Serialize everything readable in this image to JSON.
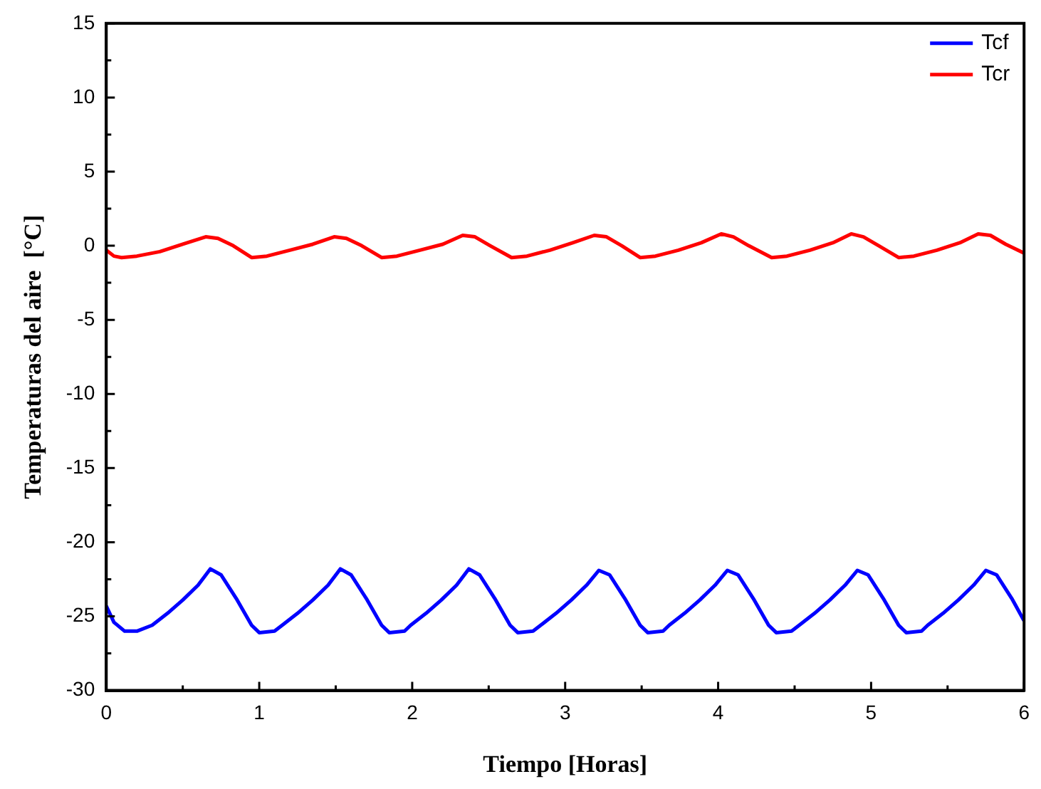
{
  "chart_data": {
    "type": "line",
    "xlabel": "Tiempo [Horas]",
    "ylabel": "Temperaturas del aire  [°C]",
    "xlim": [
      0,
      6
    ],
    "xticks": [
      0,
      1,
      2,
      3,
      4,
      5,
      6
    ],
    "ylim": [
      -30,
      15
    ],
    "yticks": [
      -30,
      -25,
      -20,
      -15,
      -10,
      -5,
      0,
      5,
      10,
      15
    ],
    "grid": false,
    "legend": "top right",
    "marker": "none",
    "line_style": "solid",
    "series": [
      {
        "name": "Tcf",
        "color": "#0000ff",
        "x": [
          0,
          0.05,
          0.12,
          0.2,
          0.3,
          0.4,
          0.5,
          0.6,
          0.68,
          0.75,
          0.85,
          0.95,
          1.0,
          1.1,
          1.15,
          1.25,
          1.35,
          1.45,
          1.53,
          1.6,
          1.7,
          1.8,
          1.85,
          1.95,
          1.99,
          2.09,
          2.19,
          2.29,
          2.37,
          2.44,
          2.54,
          2.64,
          2.69,
          2.79,
          2.84,
          2.94,
          3.04,
          3.14,
          3.22,
          3.29,
          3.39,
          3.49,
          3.54,
          3.64,
          3.68,
          3.78,
          3.88,
          3.98,
          4.06,
          4.13,
          4.23,
          4.33,
          4.38,
          4.48,
          4.53,
          4.63,
          4.73,
          4.83,
          4.91,
          4.98,
          5.08,
          5.18,
          5.23,
          5.33,
          5.37,
          5.47,
          5.57,
          5.67,
          5.75,
          5.82,
          5.92,
          6.0
        ],
        "values": [
          -24.3,
          -25.4,
          -26.0,
          -26.0,
          -25.6,
          -24.8,
          -23.9,
          -22.9,
          -21.8,
          -22.2,
          -23.8,
          -25.6,
          -26.1,
          -26.0,
          -25.6,
          -24.8,
          -23.9,
          -22.9,
          -21.8,
          -22.2,
          -23.8,
          -25.6,
          -26.1,
          -26.0,
          -25.6,
          -24.8,
          -23.9,
          -22.9,
          -21.8,
          -22.2,
          -23.8,
          -25.6,
          -26.1,
          -26.0,
          -25.6,
          -24.8,
          -23.9,
          -22.9,
          -21.9,
          -22.2,
          -23.8,
          -25.6,
          -26.1,
          -26.0,
          -25.6,
          -24.8,
          -23.9,
          -22.9,
          -21.9,
          -22.2,
          -23.8,
          -25.6,
          -26.1,
          -26.0,
          -25.6,
          -24.8,
          -23.9,
          -22.9,
          -21.9,
          -22.2,
          -23.8,
          -25.6,
          -26.1,
          -26.0,
          -25.6,
          -24.8,
          -23.9,
          -22.9,
          -21.9,
          -22.2,
          -23.8,
          -25.3
        ]
      },
      {
        "name": "Tcr",
        "color": "#ff0000",
        "x": [
          0,
          0.05,
          0.1,
          0.2,
          0.35,
          0.5,
          0.65,
          0.73,
          0.83,
          0.95,
          1.05,
          1.2,
          1.35,
          1.49,
          1.57,
          1.67,
          1.8,
          1.9,
          2.05,
          2.2,
          2.33,
          2.41,
          2.51,
          2.65,
          2.75,
          2.9,
          3.05,
          3.19,
          3.27,
          3.37,
          3.49,
          3.59,
          3.74,
          3.89,
          4.02,
          4.1,
          4.2,
          4.35,
          4.45,
          4.6,
          4.75,
          4.87,
          4.95,
          5.05,
          5.18,
          5.28,
          5.43,
          5.58,
          5.7,
          5.78,
          5.88,
          6.0
        ],
        "values": [
          -0.3,
          -0.7,
          -0.8,
          -0.7,
          -0.4,
          0.1,
          0.6,
          0.5,
          0.0,
          -0.8,
          -0.7,
          -0.3,
          0.1,
          0.6,
          0.5,
          0.0,
          -0.8,
          -0.7,
          -0.3,
          0.1,
          0.7,
          0.6,
          0.0,
          -0.8,
          -0.7,
          -0.3,
          0.2,
          0.7,
          0.6,
          0.0,
          -0.8,
          -0.7,
          -0.3,
          0.2,
          0.8,
          0.6,
          0.0,
          -0.8,
          -0.7,
          -0.3,
          0.2,
          0.8,
          0.6,
          0.0,
          -0.8,
          -0.7,
          -0.3,
          0.2,
          0.8,
          0.7,
          0.1,
          -0.5
        ]
      }
    ]
  }
}
